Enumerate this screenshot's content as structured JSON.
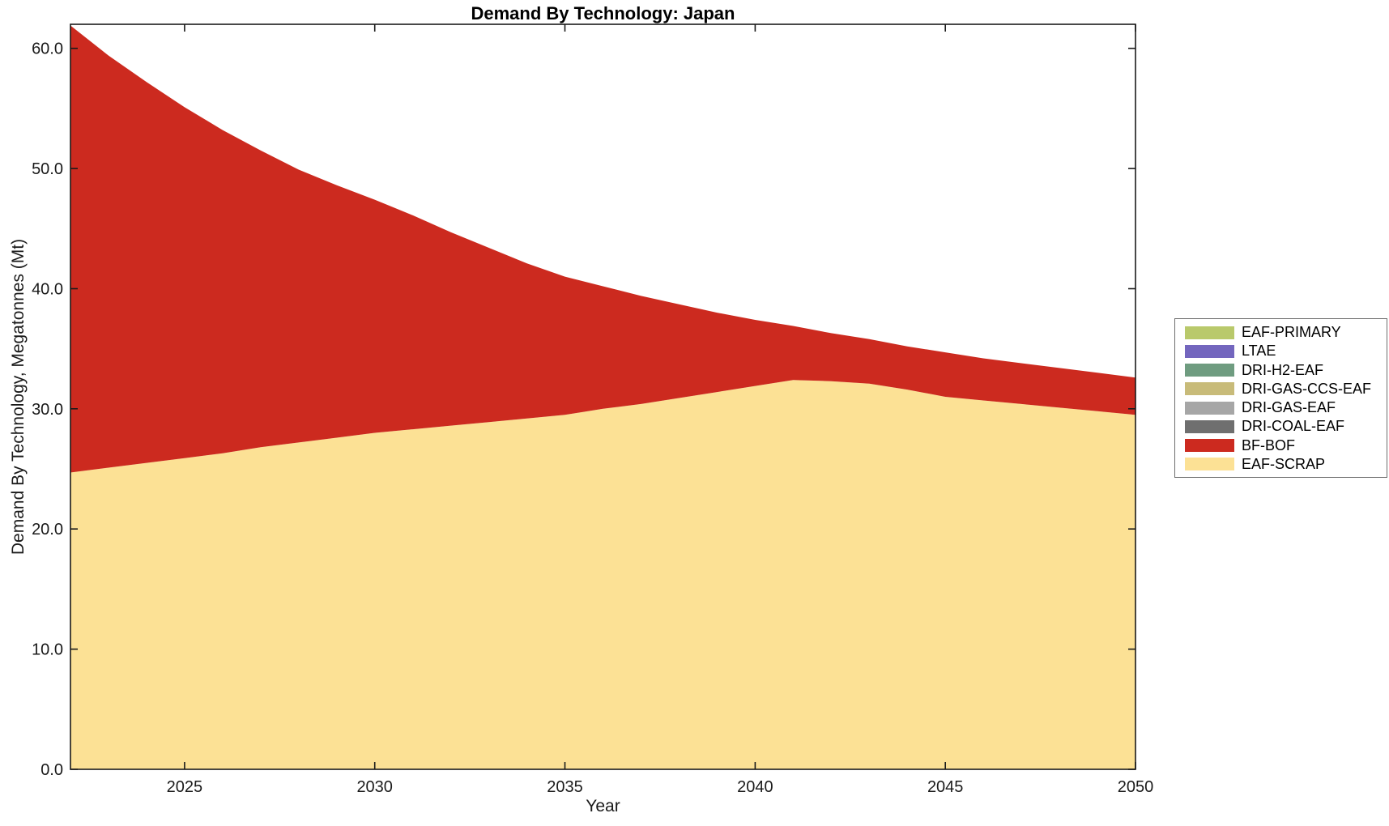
{
  "figure": {
    "title": "Demand By Technology: Japan",
    "xlabel": "Year",
    "ylabel": "Demand By Technology, Megatonnes (Mt)"
  },
  "chart_data": {
    "type": "area",
    "stacked": true,
    "title": "Demand By Technology: Japan",
    "xlabel": "Year",
    "ylabel": "Demand By Technology, Megatonnes (Mt)",
    "xlim": [
      2022,
      2050
    ],
    "ylim": [
      0,
      62
    ],
    "x_ticks": [
      2025,
      2030,
      2035,
      2040,
      2045,
      2050
    ],
    "y_ticks": [
      0,
      10,
      20,
      30,
      40,
      50,
      60
    ],
    "y_tick_format_decimals": 1,
    "grid": false,
    "x": [
      2022,
      2023,
      2024,
      2025,
      2026,
      2027,
      2028,
      2029,
      2030,
      2031,
      2032,
      2033,
      2034,
      2035,
      2036,
      2037,
      2038,
      2039,
      2040,
      2041,
      2042,
      2043,
      2044,
      2045,
      2046,
      2047,
      2048,
      2049,
      2050
    ],
    "series": [
      {
        "name": "EAF-SCRAP",
        "color": "#FCE195",
        "values": [
          24.7,
          25.1,
          25.5,
          25.9,
          26.3,
          26.8,
          27.2,
          27.6,
          28.0,
          28.3,
          28.6,
          28.9,
          29.2,
          29.5,
          30.0,
          30.4,
          30.9,
          31.4,
          31.9,
          32.4,
          32.3,
          32.1,
          31.6,
          31.0,
          30.7,
          30.4,
          30.1,
          29.8,
          29.5
        ]
      },
      {
        "name": "BF-BOF",
        "color": "#CC2A1F",
        "values": [
          37.2,
          34.3,
          31.7,
          29.2,
          26.9,
          24.7,
          22.7,
          21.0,
          19.4,
          17.8,
          16.1,
          14.5,
          12.9,
          11.5,
          10.2,
          9.0,
          7.8,
          6.6,
          5.5,
          4.5,
          4.0,
          3.7,
          3.6,
          3.7,
          3.5,
          3.4,
          3.3,
          3.2,
          3.1
        ]
      },
      {
        "name": "DRI-COAL-EAF",
        "color": "#6F6F6F",
        "values": 0
      },
      {
        "name": "DRI-GAS-EAF",
        "color": "#A6A6A6",
        "values": 0
      },
      {
        "name": "DRI-GAS-CCS-EAF",
        "color": "#C8BB79",
        "values": 0
      },
      {
        "name": "DRI-H2-EAF",
        "color": "#6F9C80",
        "values": 0
      },
      {
        "name": "LTAE",
        "color": "#7366BE",
        "values": 0
      },
      {
        "name": "EAF-PRIMARY",
        "color": "#B9C96B",
        "values": 0
      }
    ],
    "legend": {
      "position": "right",
      "entries_top_to_bottom": [
        "EAF-PRIMARY",
        "LTAE",
        "DRI-H2-EAF",
        "DRI-GAS-CCS-EAF",
        "DRI-GAS-EAF",
        "DRI-COAL-EAF",
        "BF-BOF",
        "EAF-SCRAP"
      ]
    }
  }
}
